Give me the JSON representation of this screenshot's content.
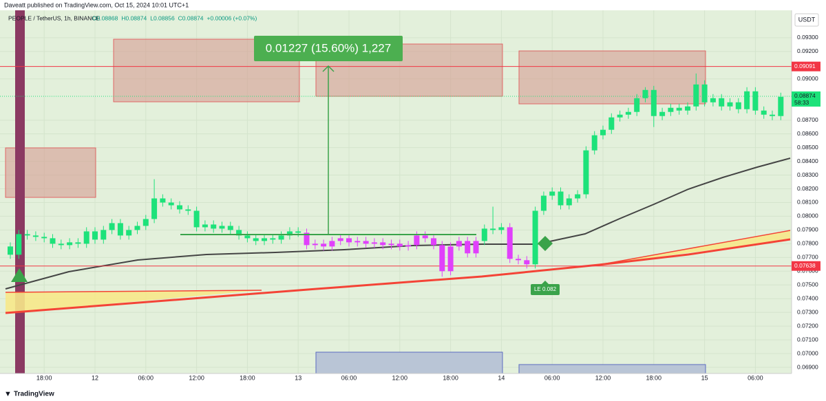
{
  "header": {
    "published": "Daveatt published on TradingView.com, Oct 15, 2024 10:01 UTC+1",
    "symbol": "PEOPLE / TetherUS, 1h, BINANCE",
    "ohlc": [
      "O0.08868",
      "H0.08874",
      "L0.08856",
      "C0.08874",
      "+0.00006 (+0.07%)"
    ],
    "currency": "USDT",
    "footer": "TradingView"
  },
  "chart_data": {
    "type": "candlestick",
    "open": [
      0.0778,
      0.0772,
      0.0787,
      0.0786,
      0.0785,
      0.0784,
      0.078,
      0.0779,
      0.0781,
      0.078,
      0.0789,
      0.0783,
      0.079,
      0.0795,
      0.0786,
      0.079,
      0.0793,
      0.0798,
      0.0813,
      0.081,
      0.0808,
      0.0805,
      0.0804,
      0.0792,
      0.0794,
      0.0791,
      0.0793,
      0.079,
      0.0786,
      0.0784,
      0.0782,
      0.0784,
      0.0783,
      0.0786,
      0.0789,
      0.0788,
      0.0779,
      0.078,
      0.0778,
      0.0782,
      0.0784,
      0.0781,
      0.0782,
      0.078,
      0.0781,
      0.0779,
      0.078,
      0.0778,
      0.0779,
      0.0786,
      0.0784,
      0.0779,
      0.076,
      0.0778,
      0.0782,
      0.0773,
      0.0782,
      0.0791,
      0.079,
      0.0792,
      0.0769,
      0.0768,
      0.0765,
      0.0804,
      0.0815,
      0.0818,
      0.0808,
      0.0813,
      0.0816,
      0.0848,
      0.0859,
      0.0863,
      0.0872,
      0.0874,
      0.0876,
      0.0886,
      0.0892,
      0.0873,
      0.0876,
      0.0879,
      0.0877,
      0.088,
      0.0896,
      0.0883,
      0.0886,
      0.088,
      0.0883,
      0.0878,
      0.0891,
      0.0877,
      0.0874,
      0.0873
    ],
    "high": [
      0.0781,
      0.079,
      0.079,
      0.0789,
      0.0788,
      0.0787,
      0.0783,
      0.0784,
      0.0784,
      0.0792,
      0.0792,
      0.0793,
      0.0798,
      0.0798,
      0.0793,
      0.0796,
      0.0801,
      0.0827,
      0.0816,
      0.0813,
      0.0811,
      0.0808,
      0.0807,
      0.0797,
      0.0797,
      0.0796,
      0.0796,
      0.0793,
      0.0789,
      0.0787,
      0.0787,
      0.0787,
      0.0789,
      0.0792,
      0.0792,
      0.0791,
      0.0783,
      0.0783,
      0.0785,
      0.0787,
      0.0787,
      0.0785,
      0.0785,
      0.0784,
      0.0784,
      0.0783,
      0.0783,
      0.0782,
      0.0789,
      0.0789,
      0.0787,
      0.0782,
      0.0781,
      0.0785,
      0.0785,
      0.0785,
      0.0794,
      0.0807,
      0.0795,
      0.0795,
      0.0772,
      0.0771,
      0.0807,
      0.0818,
      0.0821,
      0.0821,
      0.0816,
      0.0819,
      0.0851,
      0.0862,
      0.0866,
      0.0875,
      0.0877,
      0.0879,
      0.0889,
      0.0894,
      0.0895,
      0.0879,
      0.0882,
      0.0882,
      0.0883,
      0.0904,
      0.0899,
      0.0889,
      0.0889,
      0.0886,
      0.0886,
      0.0894,
      0.0894,
      0.088,
      0.0877,
      0.089
    ],
    "low": [
      0.0769,
      0.0769,
      0.0783,
      0.0782,
      0.0781,
      0.0777,
      0.0776,
      0.0776,
      0.0777,
      0.0777,
      0.078,
      0.078,
      0.0787,
      0.0783,
      0.0783,
      0.0787,
      0.079,
      0.0795,
      0.0807,
      0.0805,
      0.0802,
      0.0801,
      0.0789,
      0.0789,
      0.0788,
      0.0788,
      0.0787,
      0.0783,
      0.0781,
      0.0779,
      0.0779,
      0.078,
      0.078,
      0.0783,
      0.0785,
      0.0776,
      0.0776,
      0.0775,
      0.0775,
      0.0779,
      0.0778,
      0.0778,
      0.0777,
      0.0777,
      0.0776,
      0.0776,
      0.0775,
      0.0775,
      0.0776,
      0.0781,
      0.0776,
      0.0756,
      0.0757,
      0.0775,
      0.077,
      0.077,
      0.0779,
      0.0787,
      0.0787,
      0.0766,
      0.0765,
      0.0762,
      0.0762,
      0.0801,
      0.0812,
      0.0805,
      0.0805,
      0.081,
      0.0813,
      0.0845,
      0.0856,
      0.086,
      0.0869,
      0.0871,
      0.0873,
      0.0883,
      0.0865,
      0.087,
      0.0873,
      0.0874,
      0.0874,
      0.0877,
      0.088,
      0.088,
      0.0877,
      0.0877,
      0.0875,
      0.0875,
      0.0874,
      0.0871,
      0.087,
      0.087
    ],
    "close": [
      0.0772,
      0.0787,
      0.0786,
      0.0785,
      0.0784,
      0.078,
      0.0779,
      0.0781,
      0.078,
      0.0789,
      0.0783,
      0.079,
      0.0795,
      0.0786,
      0.079,
      0.0793,
      0.0798,
      0.0813,
      0.081,
      0.0808,
      0.0805,
      0.0804,
      0.0792,
      0.0794,
      0.0791,
      0.0793,
      0.079,
      0.0786,
      0.0784,
      0.0782,
      0.0784,
      0.0783,
      0.0786,
      0.0789,
      0.0788,
      0.0779,
      0.078,
      0.0778,
      0.0782,
      0.0784,
      0.0781,
      0.0782,
      0.078,
      0.0781,
      0.0779,
      0.078,
      0.0778,
      0.0779,
      0.0786,
      0.0784,
      0.0779,
      0.076,
      0.0778,
      0.0782,
      0.0773,
      0.0782,
      0.0791,
      0.079,
      0.0792,
      0.0769,
      0.0768,
      0.0765,
      0.0804,
      0.0815,
      0.0818,
      0.0808,
      0.0813,
      0.0816,
      0.0848,
      0.0859,
      0.0863,
      0.0872,
      0.0874,
      0.0876,
      0.0886,
      0.0892,
      0.0873,
      0.0876,
      0.0879,
      0.0877,
      0.088,
      0.0896,
      0.0883,
      0.0886,
      0.088,
      0.0883,
      0.0878,
      0.0891,
      0.0877,
      0.0874,
      0.0873,
      0.0887
    ],
    "colors": [
      "#1de27a",
      "#1de27a",
      "#1de27a",
      "#1de27a",
      "#1de27a",
      "#1de27a",
      "#1de27a",
      "#1de27a",
      "#1de27a",
      "#1de27a",
      "#1de27a",
      "#1de27a",
      "#1de27a",
      "#1de27a",
      "#1de27a",
      "#1de27a",
      "#1de27a",
      "#1de27a",
      "#1de27a",
      "#1de27a",
      "#1de27a",
      "#1de27a",
      "#1de27a",
      "#1de27a",
      "#1de27a",
      "#1de27a",
      "#1de27a",
      "#1de27a",
      "#1de27a",
      "#1de27a",
      "#1de27a",
      "#1de27a",
      "#1de27a",
      "#1de27a",
      "#1de27a",
      "#e040fb",
      "#e040fb",
      "#e040fb",
      "#e040fb",
      "#e040fb",
      "#e040fb",
      "#e040fb",
      "#e040fb",
      "#e040fb",
      "#e040fb",
      "#e040fb",
      "#e040fb",
      "#e040fb",
      "#e040fb",
      "#e040fb",
      "#e040fb",
      "#e040fb",
      "#e040fb",
      "#e040fb",
      "#e040fb",
      "#e040fb",
      "#1de27a",
      "#1de27a",
      "#1de27a",
      "#e040fb",
      "#e040fb",
      "#e040fb",
      "#1de27a",
      "#1de27a",
      "#1de27a",
      "#1de27a",
      "#1de27a",
      "#1de27a",
      "#1de27a",
      "#1de27a",
      "#1de27a",
      "#1de27a",
      "#1de27a",
      "#1de27a",
      "#1de27a",
      "#1de27a",
      "#1de27a",
      "#1de27a",
      "#1de27a",
      "#1de27a",
      "#1de27a",
      "#1de27a",
      "#1de27a",
      "#1de27a",
      "#1de27a",
      "#1de27a",
      "#1de27a",
      "#1de27a",
      "#1de27a",
      "#1de27a",
      "#1de27a",
      "#1de27a"
    ],
    "ylim": [
      0.06855,
      0.095
    ],
    "yticks": [
      {
        "value": 0.069,
        "label": "0.06900"
      },
      {
        "value": 0.07,
        "label": "0.07000"
      },
      {
        "value": 0.071,
        "label": "0.07100"
      },
      {
        "value": 0.072,
        "label": "0.07200"
      },
      {
        "value": 0.073,
        "label": "0.07300"
      },
      {
        "value": 0.074,
        "label": "0.07400"
      },
      {
        "value": 0.075,
        "label": "0.07500"
      },
      {
        "value": 0.076,
        "label": "0.07600"
      },
      {
        "value": 0.077,
        "label": "0.07700"
      },
      {
        "value": 0.078,
        "label": "0.07800"
      },
      {
        "value": 0.079,
        "label": "0.07900"
      },
      {
        "value": 0.08,
        "label": "0.08000"
      },
      {
        "value": 0.081,
        "label": "0.08100"
      },
      {
        "value": 0.082,
        "label": "0.08200"
      },
      {
        "value": 0.083,
        "label": "0.08300"
      },
      {
        "value": 0.084,
        "label": "0.08400"
      },
      {
        "value": 0.085,
        "label": "0.08500"
      },
      {
        "value": 0.086,
        "label": "0.08600"
      },
      {
        "value": 0.087,
        "label": "0.08700"
      },
      {
        "value": 0.09,
        "label": "0.09000"
      },
      {
        "value": 0.092,
        "label": "0.09200"
      },
      {
        "value": 0.093,
        "label": "0.09300"
      }
    ],
    "xticks": [
      {
        "value": 4,
        "label": "18:00"
      },
      {
        "value": 10,
        "label": "12"
      },
      {
        "value": 16,
        "label": "06:00"
      },
      {
        "value": 22,
        "label": "12:00"
      },
      {
        "value": 28,
        "label": "18:00"
      },
      {
        "value": 34,
        "label": "13"
      },
      {
        "value": 40,
        "label": "06:00"
      },
      {
        "value": 46,
        "label": "12:00"
      },
      {
        "value": 52,
        "label": "18:00"
      },
      {
        "value": 58,
        "label": "14"
      },
      {
        "value": 64,
        "label": "06:00"
      },
      {
        "value": 70,
        "label": "12:00"
      },
      {
        "value": 76,
        "label": "18:00"
      },
      {
        "value": 82,
        "label": "15"
      },
      {
        "value": 88,
        "label": "06:00"
      }
    ],
    "grid": true,
    "price_lines": [
      {
        "value": 0.09091,
        "label": "0.09091",
        "color": "#f23645"
      },
      {
        "value": 0.07638,
        "label": "0.07638",
        "color": "#f23645"
      }
    ],
    "last_price": {
      "value": 0.08874,
      "label": "0.08874",
      "countdown": "58:33",
      "color": "#1de27a"
    },
    "annotations": {
      "measure": "0.01227 (15.60%) 1,227",
      "entry": "LE 0.082"
    }
  }
}
